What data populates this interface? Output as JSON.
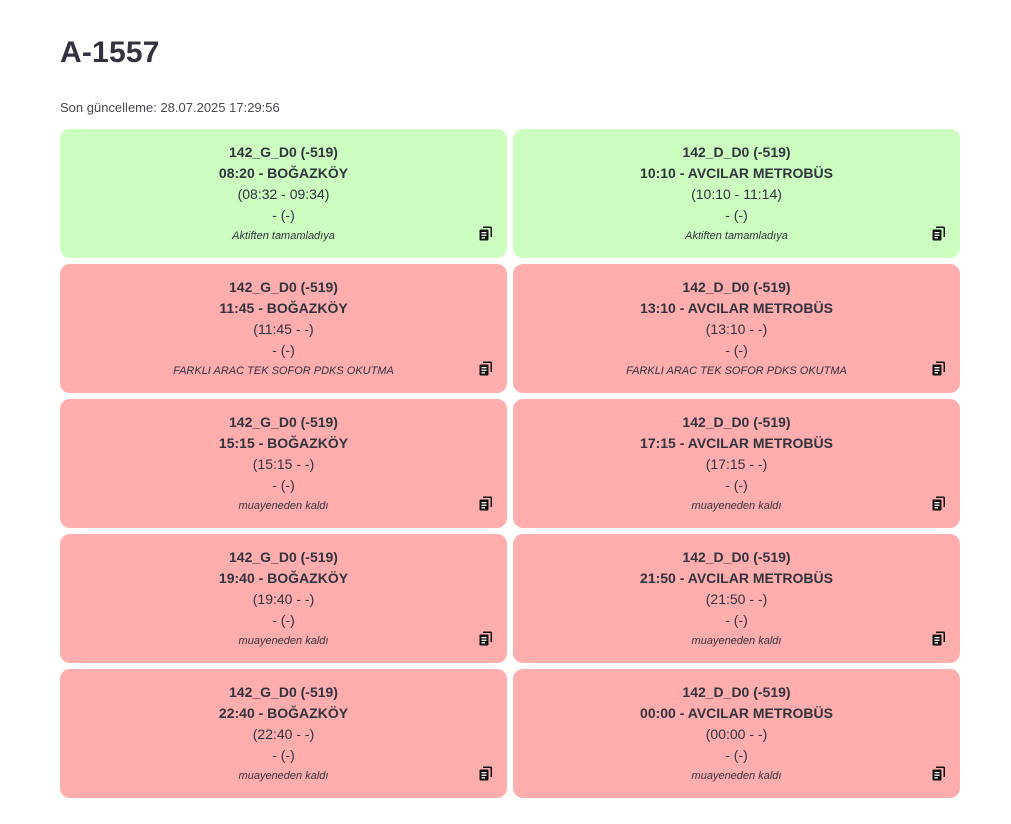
{
  "page": {
    "title": "A-1557",
    "last_updated": "Son güncelleme: 28.07.2025 17:29:56"
  },
  "colors": {
    "completed": "#ccffbf",
    "failed": "#ffadad"
  },
  "cards": [
    {
      "status": "completed",
      "route": "142_G_D0 (-519)",
      "departure": "08:20 - BOĞAZKÖY",
      "times": "(08:32 - 09:34)",
      "extra": "- (-)",
      "note": "Aktiften tamamladıya",
      "icon": "copy-icon"
    },
    {
      "status": "completed",
      "route": "142_D_D0 (-519)",
      "departure": "10:10 - AVCILAR METROBÜS",
      "times": "(10:10 - 11:14)",
      "extra": "- (-)",
      "note": "Aktiften tamamladıya",
      "icon": "copy-icon"
    },
    {
      "status": "failed",
      "route": "142_G_D0 (-519)",
      "departure": "11:45 - BOĞAZKÖY",
      "times": "(11:45 - -)",
      "extra": "- (-)",
      "note": "FARKLI ARAC TEK SOFOR PDKS OKUTMA",
      "icon": "copy-icon"
    },
    {
      "status": "failed",
      "route": "142_D_D0 (-519)",
      "departure": "13:10 - AVCILAR METROBÜS",
      "times": "(13:10 - -)",
      "extra": "- (-)",
      "note": "FARKLI ARAC TEK SOFOR PDKS OKUTMA",
      "icon": "copy-icon"
    },
    {
      "status": "failed",
      "route": "142_G_D0 (-519)",
      "departure": "15:15 - BOĞAZKÖY",
      "times": "(15:15 - -)",
      "extra": "- (-)",
      "note": "muayeneden kaldı",
      "icon": "copy-icon"
    },
    {
      "status": "failed",
      "route": "142_D_D0 (-519)",
      "departure": "17:15 - AVCILAR METROBÜS",
      "times": "(17:15 - -)",
      "extra": "- (-)",
      "note": "muayeneden kaldı",
      "icon": "copy-icon"
    },
    {
      "status": "failed",
      "route": "142_G_D0 (-519)",
      "departure": "19:40 - BOĞAZKÖY",
      "times": "(19:40 - -)",
      "extra": "- (-)",
      "note": "muayeneden kaldı",
      "icon": "copy-icon"
    },
    {
      "status": "failed",
      "route": "142_D_D0 (-519)",
      "departure": "21:50 - AVCILAR METROBÜS",
      "times": "(21:50 - -)",
      "extra": "- (-)",
      "note": "muayeneden kaldı",
      "icon": "copy-icon"
    },
    {
      "status": "failed",
      "route": "142_G_D0 (-519)",
      "departure": "22:40 - BOĞAZKÖY",
      "times": "(22:40 - -)",
      "extra": "- (-)",
      "note": "muayeneden kaldı",
      "icon": "copy-icon"
    },
    {
      "status": "failed",
      "route": "142_D_D0 (-519)",
      "departure": "00:00 - AVCILAR METROBÜS",
      "times": "(00:00 - -)",
      "extra": "- (-)",
      "note": "muayeneden kaldı",
      "icon": "copy-icon"
    }
  ]
}
